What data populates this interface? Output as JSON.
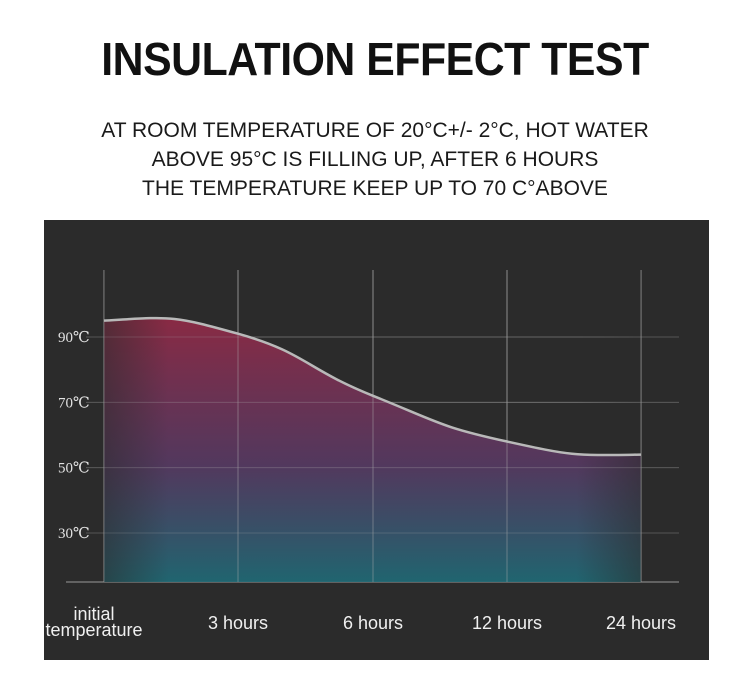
{
  "header": {
    "title": "INSULATION EFFECT TEST",
    "subtitle_lines": [
      "AT ROOM TEMPERATURE OF 20°C+/- 2°C, HOT WATER",
      "ABOVE 95°C IS FILLING UP, AFTER 6 HOURS",
      "THE TEMPERATURE KEEP UP TO 70 C°ABOVE"
    ]
  },
  "chart_data": {
    "type": "area",
    "title": "",
    "xlabel": "",
    "ylabel": "",
    "categories": [
      "initial temperature",
      "3 hours",
      "6 hours",
      "12 hours",
      "24 hours"
    ],
    "x_tick_lines": [
      [
        "initial",
        "temperature"
      ],
      [
        "3 hours"
      ],
      [
        "6 hours"
      ],
      [
        "12 hours"
      ],
      [
        "24 hours"
      ]
    ],
    "y_ticks": [
      90,
      70,
      50,
      30
    ],
    "y_tick_labels": [
      "90℃",
      "70℃",
      "50℃",
      "30℃"
    ],
    "ylim": [
      15,
      105
    ],
    "grid": true,
    "series": [
      {
        "values": [
          95,
          91,
          72,
          58,
          54
        ]
      }
    ],
    "colors": {
      "background": "#2b2b2b",
      "grid": "#7a7a7a",
      "line": "#b9b9b9",
      "fill_top": "#8e2a45",
      "fill_bottom": "#1f6b77"
    }
  }
}
